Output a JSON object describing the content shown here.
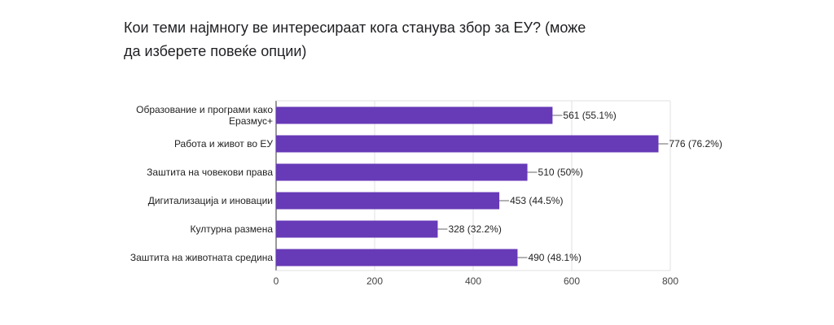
{
  "question": "Кои теми најмногу ве интересираат кога станува збор за ЕУ?  (може да изберете повеќе опции)",
  "chart_data": {
    "type": "bar",
    "orientation": "horizontal",
    "categories": [
      [
        "Образование и програми како",
        "Еразмус+"
      ],
      [
        "Работа и живот во ЕУ"
      ],
      [
        "Заштита на човекови права"
      ],
      [
        "Дигитализација и иновации"
      ],
      [
        "Културна размена"
      ],
      [
        "Заштита на животната средина"
      ]
    ],
    "values": [
      561,
      776,
      510,
      453,
      328,
      490
    ],
    "value_labels": [
      "561 (55.1%)",
      "776 (76.2%)",
      "510 (50%)",
      "453 (44.5%)",
      "328 (32.2%)",
      "490 (48.1%)"
    ],
    "xlim": [
      0,
      800
    ],
    "xticks": [
      0,
      200,
      400,
      600,
      800
    ],
    "grid": true,
    "bar_color": "#673ab7",
    "grid_color": "#e0e0e0"
  }
}
